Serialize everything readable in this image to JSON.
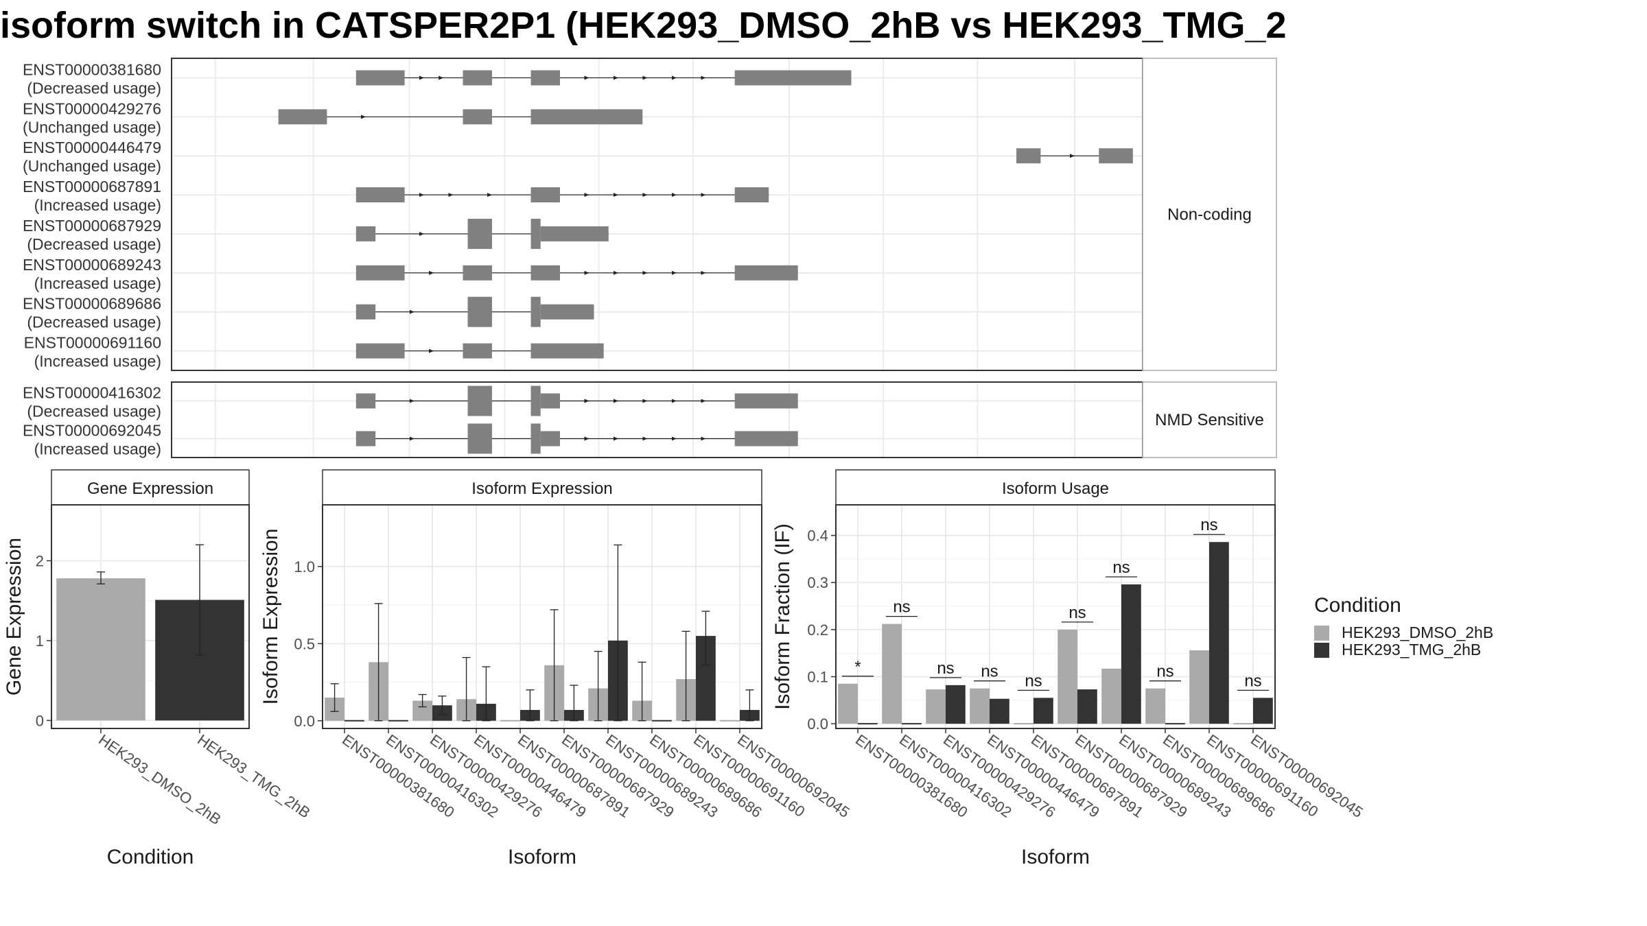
{
  "title": "isoform switch in CATSPER2P1 (HEK293_DMSO_2hB vs HEK293_TMG_2",
  "colors": {
    "dmso": "#aaaaaa",
    "tmg": "#333333",
    "exon": "#808080",
    "grid": "#ebebeb",
    "axis": "#333333"
  },
  "structure": {
    "facets": [
      {
        "label": "Non-coding",
        "transcripts": [
          {
            "id": "ENST00000381680",
            "status": "(Decreased usage)",
            "exons": [
              [
                0.19,
                0.24,
                "w"
              ],
              [
                0.3,
                0.33,
                "w"
              ],
              [
                0.37,
                0.4,
                "w"
              ],
              [
                0.58,
                0.7,
                "w"
              ]
            ],
            "arrows": [
              0.26,
              0.28,
              0.43,
              0.46,
              0.49,
              0.52,
              0.55
            ]
          },
          {
            "id": "ENST00000429276",
            "status": "(Unchanged usage)",
            "exons": [
              [
                0.11,
                0.16,
                "w"
              ],
              [
                0.3,
                0.33,
                "w"
              ],
              [
                0.37,
                0.485,
                "w"
              ]
            ],
            "arrows": [
              0.2
            ]
          },
          {
            "id": "ENST00000446479",
            "status": "(Unchanged usage)",
            "exons": [
              [
                0.87,
                0.895,
                "w"
              ],
              [
                0.955,
                0.99,
                "w"
              ]
            ],
            "arrows": [
              0.93
            ]
          },
          {
            "id": "ENST00000687891",
            "status": "(Increased usage)",
            "exons": [
              [
                0.19,
                0.24,
                "w"
              ],
              [
                0.37,
                0.4,
                "w"
              ],
              [
                0.58,
                0.615,
                "w"
              ]
            ],
            "arrows": [
              0.26,
              0.29,
              0.33,
              0.43,
              0.46,
              0.49,
              0.52,
              0.55
            ]
          },
          {
            "id": "ENST00000687929",
            "status": "(Decreased usage)",
            "exons": [
              [
                0.19,
                0.21,
                "n"
              ],
              [
                0.305,
                0.33,
                "t"
              ],
              [
                0.37,
                0.38,
                "t"
              ],
              [
                0.38,
                0.45,
                "n"
              ]
            ],
            "arrows": [
              0.26
            ]
          },
          {
            "id": "ENST00000689243",
            "status": "(Increased usage)",
            "exons": [
              [
                0.19,
                0.24,
                "w"
              ],
              [
                0.3,
                0.33,
                "w"
              ],
              [
                0.37,
                0.4,
                "w"
              ],
              [
                0.58,
                0.645,
                "w"
              ]
            ],
            "arrows": [
              0.27,
              0.43,
              0.46,
              0.49,
              0.52,
              0.55
            ]
          },
          {
            "id": "ENST00000689686",
            "status": "(Decreased usage)",
            "exons": [
              [
                0.19,
                0.21,
                "n"
              ],
              [
                0.305,
                0.33,
                "t"
              ],
              [
                0.37,
                0.38,
                "t"
              ],
              [
                0.38,
                0.435,
                "n"
              ]
            ],
            "arrows": [
              0.25
            ]
          },
          {
            "id": "ENST00000691160",
            "status": "(Increased usage)",
            "exons": [
              [
                0.19,
                0.24,
                "w"
              ],
              [
                0.3,
                0.33,
                "w"
              ],
              [
                0.37,
                0.445,
                "w"
              ]
            ],
            "arrows": [
              0.27
            ]
          }
        ]
      },
      {
        "label": "NMD Sensitive",
        "transcripts": [
          {
            "id": "ENST00000416302",
            "status": "(Decreased usage)",
            "exons": [
              [
                0.19,
                0.21,
                "n"
              ],
              [
                0.305,
                0.33,
                "t"
              ],
              [
                0.37,
                0.38,
                "t"
              ],
              [
                0.38,
                0.4,
                "n"
              ],
              [
                0.58,
                0.645,
                "n"
              ]
            ],
            "arrows": [
              0.25,
              0.43,
              0.46,
              0.49,
              0.52,
              0.55
            ]
          },
          {
            "id": "ENST00000692045",
            "status": "(Increased usage)",
            "exons": [
              [
                0.19,
                0.21,
                "n"
              ],
              [
                0.305,
                0.33,
                "t"
              ],
              [
                0.37,
                0.38,
                "t"
              ],
              [
                0.38,
                0.4,
                "n"
              ],
              [
                0.58,
                0.645,
                "n"
              ]
            ],
            "arrows": [
              0.25,
              0.43,
              0.46,
              0.49,
              0.52,
              0.55
            ]
          }
        ]
      }
    ]
  },
  "chart_data": [
    {
      "type": "bar",
      "strip": "Gene Expression",
      "xlabel": "Condition",
      "ylabel": "Gene Expression",
      "ylim": [
        -0.1,
        2.7
      ],
      "yticks": [
        0,
        1,
        2
      ],
      "categories": [
        "HEK293_DMSO_2hB",
        "HEK293_TMG_2hB"
      ],
      "values": [
        1.78,
        1.51
      ],
      "errors": [
        [
          1.71,
          1.86
        ],
        [
          0.82,
          2.2
        ]
      ]
    },
    {
      "type": "bar",
      "strip": "Isoform Expression",
      "xlabel": "Isoform",
      "ylabel": "Isoform Expression",
      "ylim": [
        -0.05,
        1.4
      ],
      "yticks": [
        0.0,
        0.5,
        1.0
      ],
      "categories": [
        "ENST00000381680",
        "ENST00000416302",
        "ENST00000429276",
        "ENST00000446479",
        "ENST00000687891",
        "ENST00000687929",
        "ENST00000689243",
        "ENST00000689686",
        "ENST00000691160",
        "ENST00000692045"
      ],
      "series": [
        {
          "name": "HEK293_DMSO_2hB",
          "values": [
            0.15,
            0.38,
            0.13,
            0.14,
            0.0,
            0.36,
            0.21,
            0.13,
            0.27,
            0.0
          ],
          "errors": [
            [
              0.06,
              0.24
            ],
            [
              0.0,
              0.76
            ],
            [
              0.09,
              0.17
            ],
            [
              0.0,
              0.41
            ],
            [
              0,
              0
            ],
            [
              0.0,
              0.72
            ],
            [
              0.0,
              0.45
            ],
            [
              0.0,
              0.38
            ],
            [
              0.0,
              0.58
            ],
            [
              0,
              0
            ]
          ]
        },
        {
          "name": "HEK293_TMG_2hB",
          "values": [
            0.0,
            0.0,
            0.1,
            0.11,
            0.07,
            0.07,
            0.52,
            0.0,
            0.55,
            0.07
          ],
          "errors": [
            [
              0,
              0
            ],
            [
              0,
              0
            ],
            [
              0.04,
              0.16
            ],
            [
              0.0,
              0.35
            ],
            [
              0.0,
              0.2
            ],
            [
              0.0,
              0.23
            ],
            [
              0.0,
              1.14
            ],
            [
              0,
              0
            ],
            [
              0.36,
              0.71
            ],
            [
              0.0,
              0.2
            ]
          ]
        }
      ]
    },
    {
      "type": "bar",
      "strip": "Isoform Usage",
      "xlabel": "Isoform",
      "ylabel": "Isoform Fraction (IF)",
      "ylim": [
        -0.01,
        0.465
      ],
      "yticks": [
        0.0,
        0.1,
        0.2,
        0.3,
        0.4
      ],
      "categories": [
        "ENST00000381680",
        "ENST00000416302",
        "ENST00000429276",
        "ENST00000446479",
        "ENST00000687891",
        "ENST00000687929",
        "ENST00000689243",
        "ENST00000689686",
        "ENST00000691160",
        "ENST00000692045"
      ],
      "series": [
        {
          "name": "HEK293_DMSO_2hB",
          "values": [
            0.085,
            0.212,
            0.073,
            0.075,
            0.0,
            0.2,
            0.117,
            0.075,
            0.156,
            0.0
          ]
        },
        {
          "name": "HEK293_TMG_2hB",
          "values": [
            0.0,
            0.0,
            0.082,
            0.053,
            0.055,
            0.073,
            0.296,
            0.0,
            0.386,
            0.055
          ]
        }
      ],
      "significance": [
        "*",
        "ns",
        "ns",
        "ns",
        "ns",
        "ns",
        "ns",
        "ns",
        "ns",
        "ns"
      ]
    }
  ],
  "legend": {
    "title": "Condition",
    "items": [
      {
        "label": "HEK293_DMSO_2hB",
        "color": "#aaaaaa"
      },
      {
        "label": "HEK293_TMG_2hB",
        "color": "#333333"
      }
    ]
  }
}
